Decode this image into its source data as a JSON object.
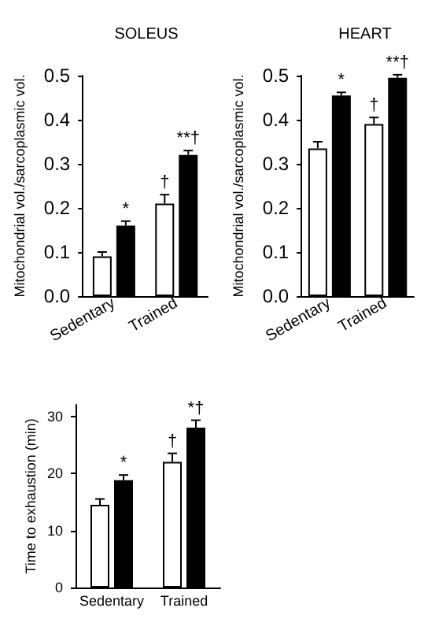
{
  "chart_data": [
    {
      "type": "bar",
      "title": "SOLEUS",
      "ylabel": "Mitochondrial vol./sarcoplasmic vol.",
      "categories": [
        "Sedentary",
        "Trained"
      ],
      "series": [
        {
          "color": "#ffffff",
          "values": [
            0.09,
            0.21
          ],
          "errors": [
            [
              0.09,
              0.1
            ],
            [
              0.21,
              0.23
            ]
          ]
        },
        {
          "color": "#000000",
          "values": [
            0.16,
            0.32
          ],
          "errors": [
            [
              0.16,
              0.17
            ],
            [
              0.32,
              0.33
            ]
          ]
        }
      ],
      "ylim": [
        0,
        0.5
      ],
      "yticks": [
        {
          "value": 0,
          "label": "0.0"
        },
        0.1,
        0.2,
        0.3,
        0.4,
        0.5
      ],
      "grid": false,
      "annotations": [
        {
          "text": "*",
          "x": "Sedentary",
          "y": 0.17
        },
        {
          "text": "†",
          "x": "Trained",
          "y": 0.23
        },
        {
          "text": "**†",
          "x": "Trained",
          "y": 0.33
        }
      ]
    },
    {
      "type": "bar",
      "title": "HEART",
      "ylabel": "Mitochondrial vol./sarcoplasmic vol.",
      "categories": [
        "Sedentary",
        "Trained"
      ],
      "series": [
        {
          "color": "#ffffff",
          "values": [
            0.335,
            0.39
          ],
          "errors": [
            [
              0.335,
              0.35
            ],
            [
              0.39,
              0.405
            ]
          ]
        },
        {
          "color": "#000000",
          "values": [
            0.455,
            0.495
          ],
          "errors": [
            [
              0.455,
              0.462
            ],
            [
              0.495,
              0.502
            ]
          ]
        }
      ],
      "ylim": [
        0,
        0.5
      ],
      "yticks": [
        {
          "value": 0,
          "label": "0.0"
        },
        0.1,
        0.2,
        0.3,
        0.4,
        0.5
      ],
      "grid": false,
      "annotations": [
        {
          "text": "*",
          "x": "Sedentary",
          "y": 0.462
        },
        {
          "text": "†",
          "x": "Trained",
          "y": 0.405
        },
        {
          "text": "**†",
          "x": "Trained",
          "y": 0.502
        }
      ]
    },
    {
      "type": "bar",
      "ylabel": "Time to exhaustion (min)",
      "categories": [
        "Sedentary",
        "Trained"
      ],
      "series": [
        {
          "color": "#ffffff",
          "values": [
            14.5,
            22
          ],
          "errors": [
            [
              14.5,
              15.5
            ],
            [
              22,
              23.5
            ]
          ]
        },
        {
          "color": "#000000",
          "values": [
            18.8,
            28
          ],
          "errors": [
            [
              18.8,
              19.7
            ],
            [
              28,
              29.3
            ]
          ]
        }
      ],
      "ylim": [
        0,
        32
      ],
      "yticks": [
        0,
        10,
        20,
        30
      ],
      "grid": false,
      "annotations": [
        {
          "text": "*",
          "x": "Sedentary",
          "y": 19.7
        },
        {
          "text": "†",
          "x": "Trained",
          "y": 23.5
        },
        {
          "text": "*†",
          "x": "Trained",
          "y": 29.3
        }
      ]
    }
  ]
}
